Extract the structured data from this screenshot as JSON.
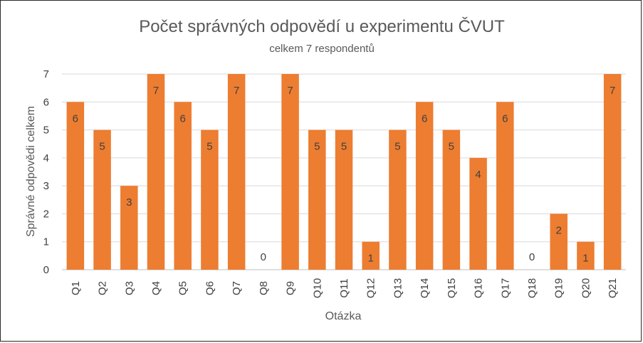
{
  "chart_data": {
    "type": "bar",
    "title": "Počet správných odpovědí u experimentu ČVUT",
    "subtitle": "celkem 7 respondentů",
    "xlabel": "Otázka",
    "ylabel": "Správné odpovědi celkem",
    "categories": [
      "Q1",
      "Q2",
      "Q3",
      "Q4",
      "Q5",
      "Q6",
      "Q7",
      "Q8",
      "Q9",
      "Q10",
      "Q11",
      "Q12",
      "Q13",
      "Q14",
      "Q15",
      "Q16",
      "Q17",
      "Q18",
      "Q19",
      "Q20",
      "Q21"
    ],
    "values": [
      6,
      5,
      3,
      7,
      6,
      5,
      7,
      0,
      7,
      5,
      5,
      1,
      5,
      6,
      5,
      4,
      6,
      0,
      2,
      1,
      7
    ],
    "ylim": [
      0,
      7
    ],
    "yticks": [
      0,
      1,
      2,
      3,
      4,
      5,
      6,
      7
    ],
    "grid": true,
    "legend": "none",
    "bar_color": "#ed7d31",
    "data_labels": true
  }
}
